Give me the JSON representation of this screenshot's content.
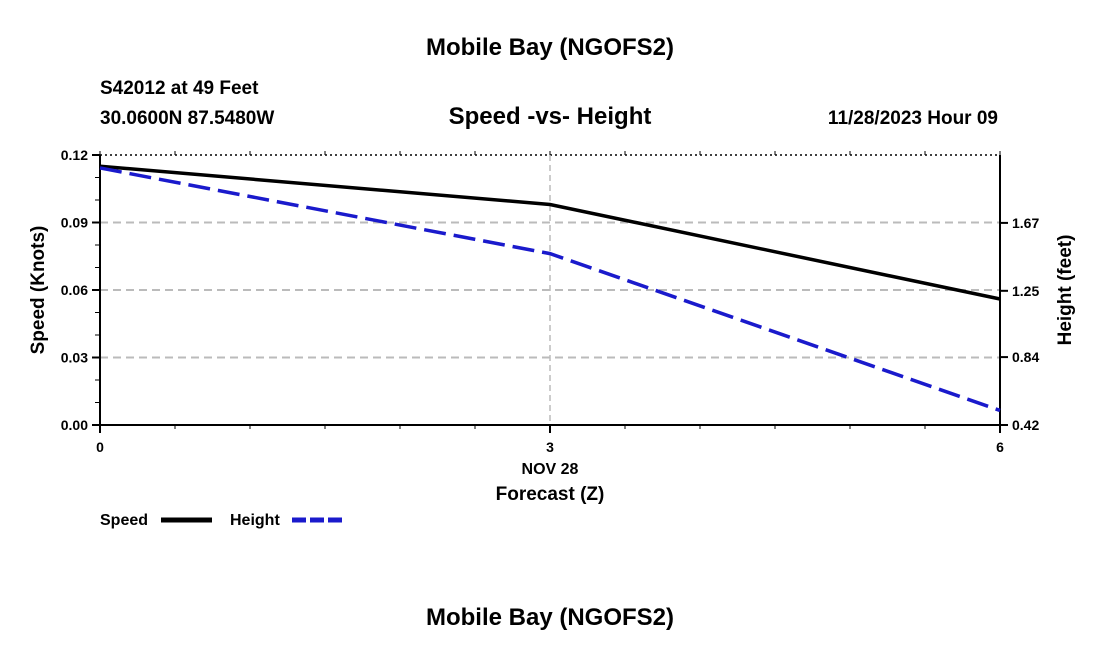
{
  "header": {
    "title": "Mobile Bay (NGOFS2)",
    "station": "S42012 at 49 Feet",
    "coords": "30.0600N  87.5480W",
    "datetime": "11/28/2023 Hour 09"
  },
  "footer": {
    "title": "Mobile Bay (NGOFS2)"
  },
  "chart_data": {
    "type": "line",
    "title": "Speed -vs- Height",
    "xlabel": "Forecast (Z)",
    "x_date_label": "NOV 28",
    "ylabel": "Speed (Knots)",
    "y2label": "Height (feet)",
    "xlim": [
      0,
      6
    ],
    "ylim": [
      0,
      0.12
    ],
    "y2lim": [
      0.42,
      2.09
    ],
    "x_ticks": [
      0,
      3,
      6
    ],
    "x_tick_labels": [
      "0",
      "3",
      "6"
    ],
    "y_ticks": [
      0,
      0.03,
      0.06,
      0.09,
      0.12
    ],
    "y_tick_labels": [
      "0.00",
      "0.03",
      "0.06",
      "0.09",
      "0.12"
    ],
    "y2_ticks": [
      0.42,
      0.84,
      1.25,
      1.67
    ],
    "y2_tick_labels": [
      "0.42",
      "0.84",
      "1.25",
      "1.67"
    ],
    "grid": true,
    "series": [
      {
        "name": "Speed",
        "axis": "left",
        "color": "#000000",
        "style": "solid",
        "x": [
          0,
          3,
          6
        ],
        "values": [
          0.115,
          0.098,
          0.056
        ]
      },
      {
        "name": "Height",
        "axis": "right",
        "color": "#1a1acc",
        "style": "dashed",
        "x": [
          0,
          3,
          6
        ],
        "values": [
          2.01,
          1.48,
          0.51
        ]
      }
    ],
    "legend": [
      "Speed",
      "Height"
    ]
  }
}
